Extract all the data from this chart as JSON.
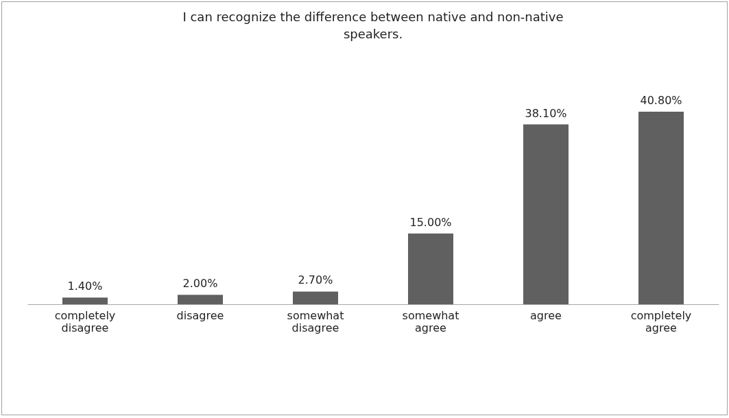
{
  "chart_data": {
    "type": "bar",
    "title": "I can recognize the difference between native and non-native speakers.",
    "categories": [
      "completely disagree",
      "disagree",
      "somewhat disagree",
      "somewhat agree",
      "agree",
      "completely agree"
    ],
    "values": [
      1.4,
      2.0,
      2.7,
      15.0,
      38.1,
      40.8
    ],
    "value_labels": [
      "1.40%",
      "2.00%",
      "2.70%",
      "15.00%",
      "38.10%",
      "40.80%"
    ],
    "color": "#606060",
    "tick_labels": "x"
  }
}
